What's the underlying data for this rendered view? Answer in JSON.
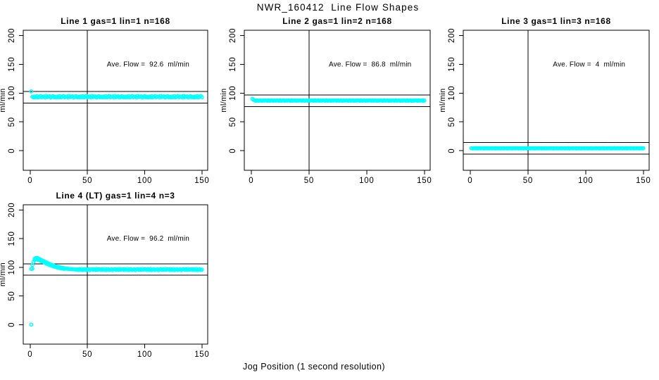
{
  "chart_data": {
    "type": "scatter",
    "title": "NWR_160412  Line Flow Shapes",
    "xlabel": "Jog Position (1 second resolution)",
    "ylabel": "ml/min",
    "x_ticks": [
      0,
      50,
      100,
      150
    ],
    "y_ticks": [
      0,
      50,
      100,
      150,
      200
    ],
    "xlim": [
      -6,
      155
    ],
    "ylim": [
      -34,
      209
    ],
    "grid": false,
    "legend": "none",
    "point_color": "#00FFFF",
    "axis_color": "#000000",
    "annotation_anchor": {
      "x": 103,
      "y": 150
    },
    "panels": [
      {
        "id": "line-1",
        "title": "Line 1 gas=1 lin=1 n=168",
        "gas": 1,
        "lin": 1,
        "n": 168,
        "avg_flow": 92.6,
        "avg_flow_label": "Ave. Flow =  92.6  ml/min",
        "ref_lines_y": [
          102.6,
          82.6
        ],
        "ref_line_x": 50,
        "head_points": [
          [
            1,
            103
          ]
        ],
        "band": {
          "x_from": 2,
          "x_to": 150,
          "base": 93.2,
          "jitter_cycle": [
            0.3,
            -0.6,
            0.8,
            -0.4,
            1.6,
            -0.7,
            0.2,
            1.9,
            -0.5,
            0.4,
            0.9,
            -0.8,
            2.1,
            -0.1,
            0.5,
            1.2,
            -0.9,
            0.3,
            1.5,
            -0.4
          ]
        }
      },
      {
        "id": "line-2",
        "title": "Line 2 gas=1 lin=2 n=168",
        "gas": 1,
        "lin": 2,
        "n": 168,
        "avg_flow": 86.8,
        "avg_flow_label": "Ave. Flow =  86.8  ml/min",
        "ref_lines_y": [
          96.8,
          76.8
        ],
        "ref_line_x": 50,
        "head_points": [
          [
            1,
            90
          ],
          [
            2,
            88.3
          ]
        ],
        "band": {
          "x_from": 3,
          "x_to": 150,
          "base": 87,
          "jitter_cycle": [
            0.2,
            -0.3,
            0.4,
            -0.2,
            0.0,
            0.3,
            -0.4,
            0.1,
            -0.1,
            0.25
          ]
        }
      },
      {
        "id": "line-3",
        "title": "Line 3 gas=1 lin=3 n=168",
        "gas": 1,
        "lin": 3,
        "n": 168,
        "avg_flow": 4,
        "avg_flow_label": "Ave. Flow =  4  ml/min",
        "ref_lines_y": [
          14,
          -6
        ],
        "ref_line_x": 50,
        "head_points": [],
        "band": {
          "x_from": 1,
          "x_to": 150,
          "base": 4.2,
          "jitter_cycle": [
            0.25,
            -0.25,
            0.1,
            -0.15,
            0.35,
            -0.3,
            0.0,
            0.2,
            -0.2,
            0.15
          ]
        }
      },
      {
        "id": "line-4-lt",
        "title": "Line 4 (LT) gas=1 lin=4 n=3",
        "gas": 1,
        "lin": 4,
        "n": 3,
        "avg_flow": 96.2,
        "avg_flow_label": "Ave. Flow =  96.2  ml/min",
        "ref_lines_y": [
          106.2,
          86.2
        ],
        "ref_line_x": 50,
        "head_points": [
          [
            1,
            0
          ],
          [
            1,
            97
          ],
          [
            2,
            104
          ],
          [
            2,
            97.5
          ],
          [
            3,
            109.5
          ],
          [
            4,
            112.5
          ],
          [
            4,
            115
          ],
          [
            5,
            116
          ],
          [
            5,
            113.5
          ],
          [
            6,
            116.5
          ],
          [
            6,
            114
          ],
          [
            7,
            115.5
          ],
          [
            7,
            113
          ],
          [
            8,
            114.5
          ],
          [
            8,
            112.5
          ],
          [
            9,
            113.5
          ],
          [
            9,
            111.5
          ],
          [
            10,
            112.5
          ],
          [
            10,
            110.5
          ],
          [
            11,
            111.5
          ],
          [
            11,
            109.8
          ],
          [
            12,
            110.5
          ],
          [
            12,
            108.8
          ],
          [
            13,
            109.5
          ],
          [
            13,
            107.8
          ],
          [
            14,
            108.5
          ],
          [
            14,
            106.8
          ],
          [
            15,
            107.5
          ],
          [
            15,
            105.8
          ],
          [
            16,
            106.5
          ],
          [
            16,
            104.9
          ],
          [
            17,
            105.5
          ],
          [
            17,
            104.1
          ],
          [
            18,
            104.8
          ],
          [
            18,
            103.3
          ],
          [
            19,
            104
          ],
          [
            19,
            102.6
          ],
          [
            20,
            103.3
          ],
          [
            20,
            101.9
          ],
          [
            21,
            102.6
          ],
          [
            21,
            101.3
          ],
          [
            22,
            102
          ],
          [
            22,
            100.7
          ],
          [
            23,
            101.4
          ],
          [
            23,
            100.1
          ],
          [
            24,
            100.8
          ],
          [
            24,
            99.6
          ],
          [
            25,
            100.3
          ],
          [
            25,
            99.1
          ],
          [
            26,
            99.8
          ],
          [
            26,
            98.7
          ],
          [
            27,
            99.4
          ],
          [
            27,
            98.3
          ],
          [
            28,
            99
          ],
          [
            28,
            97.9
          ],
          [
            29,
            98.6
          ],
          [
            29,
            97.6
          ],
          [
            30,
            98.2
          ],
          [
            30,
            97.3
          ],
          [
            31,
            97.9
          ],
          [
            32,
            97.6
          ],
          [
            33,
            97.4
          ],
          [
            34,
            97.2
          ],
          [
            35,
            97
          ],
          [
            36,
            96.8
          ],
          [
            37,
            96.6
          ],
          [
            38,
            96.4
          ],
          [
            39,
            96.3
          ],
          [
            40,
            96.1
          ]
        ],
        "band": {
          "x_from": 41,
          "x_to": 150,
          "base": 95.9,
          "jitter_cycle": [
            0.6,
            -0.7,
            1.0,
            -0.5,
            1.2,
            -0.9,
            0.3,
            0.9,
            -0.6,
            0.0,
            0.8,
            -1.0,
            0.5,
            1.1,
            -0.4,
            0.7,
            -0.6,
            1.3,
            -0.2,
            0.4
          ]
        }
      }
    ]
  }
}
